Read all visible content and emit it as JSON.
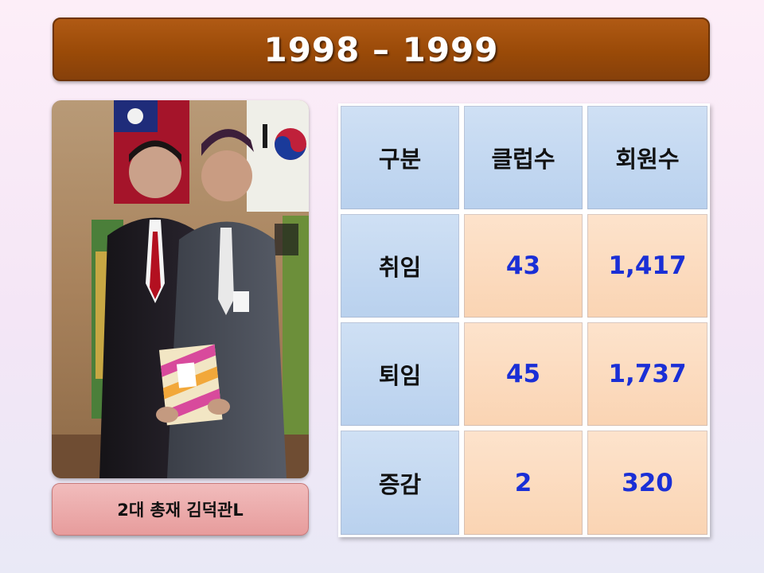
{
  "title": "1998 – 1999",
  "photo": {
    "caption": "2대 총재 김덕관L"
  },
  "table": {
    "headers": [
      "구분",
      "클럽수",
      "회원수"
    ],
    "rows": [
      {
        "label": "취임",
        "clubs": "43",
        "members": "1,417"
      },
      {
        "label": "퇴임",
        "clubs": "45",
        "members": "1,737"
      },
      {
        "label": "증감",
        "clubs": "2",
        "members": "320"
      }
    ]
  },
  "colors": {
    "title_bar": "#9a4a08",
    "header_cell": "#c4d8f1",
    "value_cell": "#fbdabd",
    "value_text": "#1a2fd6",
    "caption_box": "#eaa5a5"
  }
}
